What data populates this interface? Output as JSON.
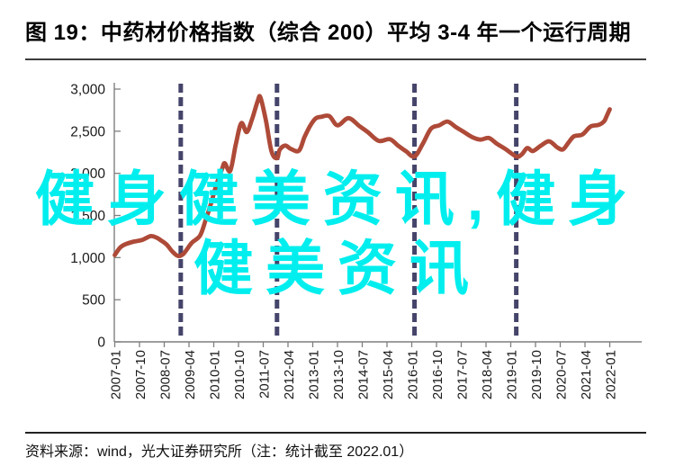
{
  "title": "图 19：中药材价格指数（综合 200）平均 3-4 年一个运行周期",
  "source_note": "资料来源：wind，光大证券研究所（注：统计截至 2022.01）",
  "watermark": {
    "line1": "健身健美资讯,健身",
    "line2": "健美资讯",
    "color": "#00EEEE"
  },
  "colors": {
    "series_line": "#AE4A38",
    "cycle_divider": "#45446A",
    "axis": "#7f7f7f",
    "tick_label": "#1a1a1a",
    "title_text": "#000000"
  },
  "chart_data": {
    "type": "line",
    "title": "中药材价格指数（综合 200）",
    "xlabel": "",
    "ylabel": "",
    "ylim": [
      0,
      3000
    ],
    "grid": false,
    "legend_position": "none",
    "y_ticks": [
      0,
      500,
      1000,
      1500,
      2000,
      2500,
      3000
    ],
    "y_tick_labels": [
      "0",
      "500",
      "1,000",
      "1,500",
      "2,000",
      "2,500",
      "3,000"
    ],
    "x_tick_labels": [
      "2007-01",
      "2007-10",
      "2008-07",
      "2009-04",
      "2010-01",
      "2010-10",
      "2011-07",
      "2012-04",
      "2013-01",
      "2013-10",
      "2014-07",
      "2015-04",
      "2016-01",
      "2016-10",
      "2017-07",
      "2018-04",
      "2019-01",
      "2019-10",
      "2020-07",
      "2021-04",
      "2022-01"
    ],
    "cycle_dividers": {
      "style": "dashed-vertical",
      "dates": [
        "2009-01",
        "2011-12",
        "2016-02",
        "2019-03"
      ]
    },
    "series": [
      {
        "name": "中药材价格指数(综合200)",
        "points": [
          [
            "2007-01",
            1030
          ],
          [
            "2007-03",
            1120
          ],
          [
            "2007-05",
            1160
          ],
          [
            "2007-08",
            1190
          ],
          [
            "2007-11",
            1210
          ],
          [
            "2008-02",
            1255
          ],
          [
            "2008-04",
            1240
          ],
          [
            "2008-06",
            1200
          ],
          [
            "2008-08",
            1150
          ],
          [
            "2008-10",
            1070
          ],
          [
            "2008-12",
            1020
          ],
          [
            "2009-02",
            1045
          ],
          [
            "2009-05",
            1175
          ],
          [
            "2009-08",
            1260
          ],
          [
            "2009-10",
            1440
          ],
          [
            "2009-12",
            1640
          ],
          [
            "2010-02",
            1870
          ],
          [
            "2010-04",
            2050
          ],
          [
            "2010-05",
            2120
          ],
          [
            "2010-07",
            2030
          ],
          [
            "2010-09",
            2340
          ],
          [
            "2010-11",
            2595
          ],
          [
            "2011-01",
            2490
          ],
          [
            "2011-03",
            2650
          ],
          [
            "2011-05",
            2860
          ],
          [
            "2011-06",
            2900
          ],
          [
            "2011-08",
            2620
          ],
          [
            "2011-10",
            2260
          ],
          [
            "2011-12",
            2180
          ],
          [
            "2012-01",
            2280
          ],
          [
            "2012-03",
            2330
          ],
          [
            "2012-05",
            2290
          ],
          [
            "2012-08",
            2270
          ],
          [
            "2012-10",
            2430
          ],
          [
            "2012-12",
            2560
          ],
          [
            "2013-02",
            2650
          ],
          [
            "2013-04",
            2670
          ],
          [
            "2013-07",
            2680
          ],
          [
            "2013-10",
            2570
          ],
          [
            "2014-02",
            2655
          ],
          [
            "2014-06",
            2560
          ],
          [
            "2014-09",
            2490
          ],
          [
            "2015-01",
            2385
          ],
          [
            "2015-05",
            2405
          ],
          [
            "2015-08",
            2330
          ],
          [
            "2015-11",
            2260
          ],
          [
            "2016-02",
            2200
          ],
          [
            "2016-05",
            2350
          ],
          [
            "2016-08",
            2530
          ],
          [
            "2016-11",
            2570
          ],
          [
            "2017-02",
            2615
          ],
          [
            "2017-05",
            2550
          ],
          [
            "2017-08",
            2490
          ],
          [
            "2017-11",
            2430
          ],
          [
            "2018-02",
            2400
          ],
          [
            "2018-05",
            2420
          ],
          [
            "2018-08",
            2350
          ],
          [
            "2018-11",
            2290
          ],
          [
            "2019-03",
            2200
          ],
          [
            "2019-05",
            2225
          ],
          [
            "2019-07",
            2300
          ],
          [
            "2019-09",
            2265
          ],
          [
            "2019-12",
            2330
          ],
          [
            "2020-03",
            2380
          ],
          [
            "2020-06",
            2305
          ],
          [
            "2020-08",
            2285
          ],
          [
            "2020-10",
            2365
          ],
          [
            "2020-12",
            2440
          ],
          [
            "2021-03",
            2460
          ],
          [
            "2021-06",
            2555
          ],
          [
            "2021-09",
            2575
          ],
          [
            "2021-11",
            2620
          ],
          [
            "2021-12",
            2690
          ],
          [
            "2022-01",
            2760
          ]
        ]
      }
    ]
  }
}
